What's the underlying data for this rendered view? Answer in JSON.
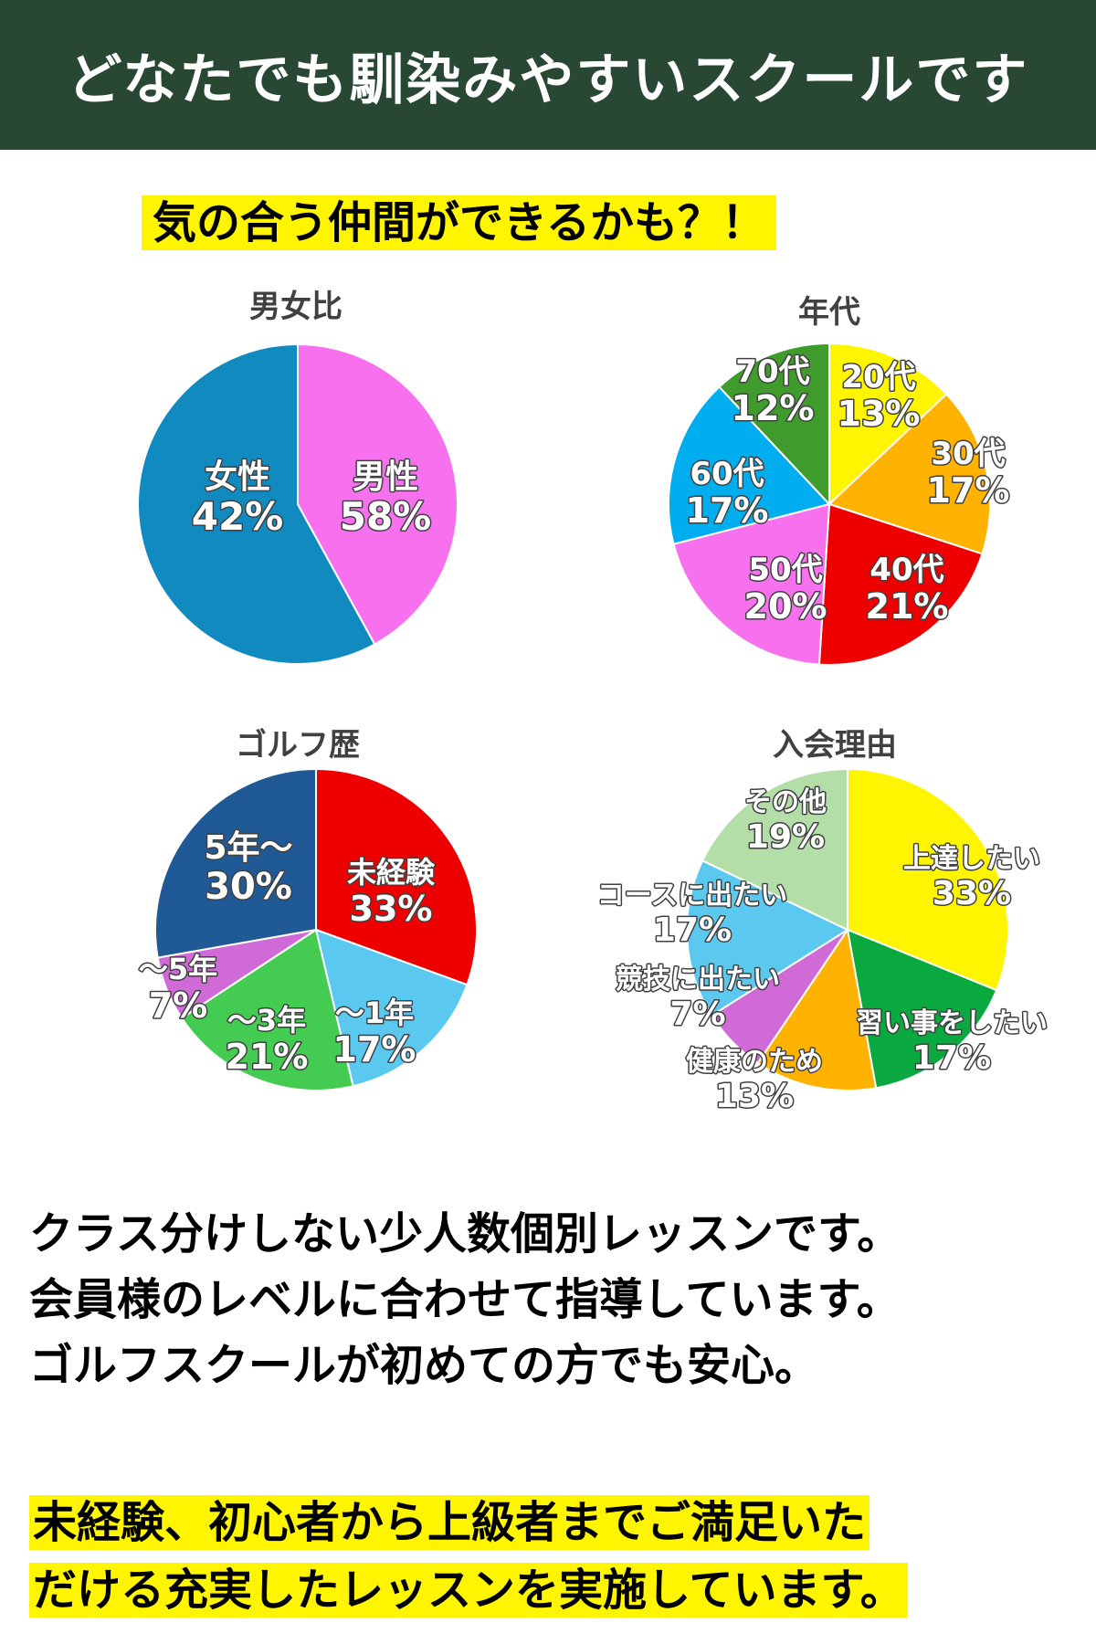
{
  "header": {
    "title": "どなたでも馴染みやすいスクールです"
  },
  "subtitle": "気の合う仲間ができるかも？！",
  "chart_data": [
    {
      "type": "pie",
      "title": "男女比",
      "categories": [
        "男性",
        "女性"
      ],
      "values": [
        58,
        42
      ],
      "value_labels": [
        "58%",
        "42%"
      ],
      "colors": [
        "#118ac0",
        "#f771ef"
      ]
    },
    {
      "type": "pie",
      "title": "年代",
      "categories": [
        "20代",
        "30代",
        "40代",
        "50代",
        "60代",
        "70代"
      ],
      "values": [
        13,
        17,
        21,
        20,
        17,
        12
      ],
      "value_labels": [
        "13%",
        "17%",
        "21%",
        "20%",
        "17%",
        "12%"
      ],
      "colors": [
        "#fff500",
        "#ffb300",
        "#ee0000",
        "#f771ef",
        "#00aeef",
        "#3e9b2c"
      ]
    },
    {
      "type": "pie",
      "title": "ゴルフ歴",
      "categories": [
        "未経験",
        "～1年",
        "～3年",
        "～5年",
        "5年～"
      ],
      "values": [
        33,
        17,
        21,
        7,
        30
      ],
      "value_labels": [
        "33%",
        "17%",
        "21%",
        "7%",
        "30%"
      ],
      "colors": [
        "#ee0000",
        "#5bc8f0",
        "#44cc52",
        "#d06ad6",
        "#205a96"
      ]
    },
    {
      "type": "pie",
      "title": "入会理由",
      "categories": [
        "上達したい",
        "習い事をしたい",
        "健康のため",
        "競技に出たい",
        "コースに出たい",
        "その他"
      ],
      "values": [
        33,
        17,
        13,
        7,
        17,
        19
      ],
      "value_labels": [
        "33%",
        "17%",
        "13%",
        "7%",
        "17%",
        "19%"
      ],
      "colors": [
        "#fff500",
        "#0aa93f",
        "#ffb300",
        "#d06ad6",
        "#5bc8f0",
        "#b4dea8"
      ]
    }
  ],
  "body_lines": [
    "クラス分けしない少人数個別レッスンです。",
    "会員様のレベルに合わせて指導しています。",
    "ゴルフスクールが初めての方でも安心。"
  ],
  "highlight_lines": [
    "未経験、初心者から上級者までご満足いた",
    "だける充実したレッスンを実施しています。"
  ]
}
